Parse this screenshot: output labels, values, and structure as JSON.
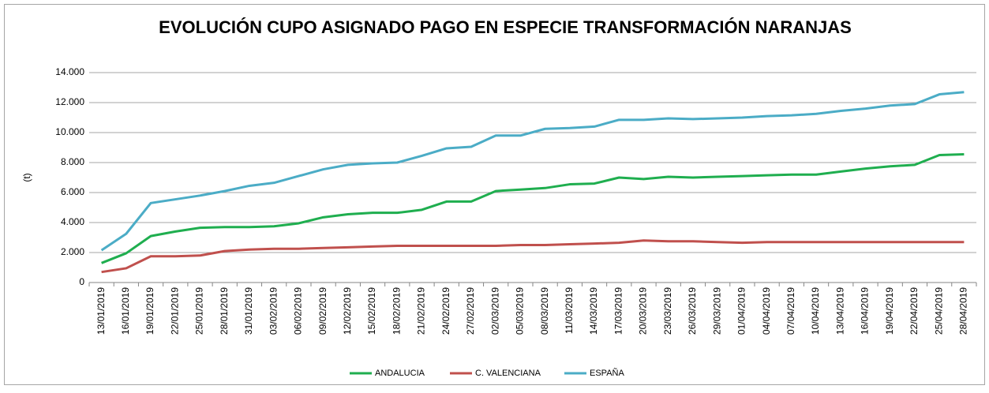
{
  "chart_data": {
    "type": "line",
    "title": "EVOLUCIÓN CUPO ASIGNADO PAGO EN ESPECIE TRANSFORMACIÓN NARANJAS",
    "y_label": "(t)",
    "categories": [
      "13/01/2019",
      "16/01/2019",
      "19/01/2019",
      "22/01/2019",
      "25/01/2019",
      "28/01/2019",
      "31/01/2019",
      "03/02/2019",
      "06/02/2019",
      "09/02/2019",
      "12/02/2019",
      "15/02/2019",
      "18/02/2019",
      "21/02/2019",
      "24/02/2019",
      "27/02/2019",
      "02/03/2019",
      "05/03/2019",
      "08/03/2019",
      "11/03/2019",
      "14/03/2019",
      "17/03/2019",
      "20/03/2019",
      "23/03/2019",
      "26/03/2019",
      "29/03/2019",
      "01/04/2019",
      "04/04/2019",
      "07/04/2019",
      "10/04/2019",
      "13/04/2019",
      "16/04/2019",
      "19/04/2019",
      "22/04/2019",
      "25/04/2019",
      "28/04/2019"
    ],
    "series": [
      {
        "name": "ANDALUCIA",
        "color": "#1fae4f",
        "values": [
          1300,
          1950,
          3100,
          3400,
          3650,
          3700,
          3700,
          3750,
          3950,
          4350,
          4550,
          4650,
          4650,
          4850,
          5400,
          5400,
          6100,
          6200,
          6300,
          6550,
          6600,
          7000,
          6900,
          7050,
          7000,
          7050,
          7100,
          7150,
          7200,
          7200,
          7400,
          7600,
          7750,
          7850,
          8500,
          8550
        ]
      },
      {
        "name": "C. VALENCIANA",
        "color": "#c0504d",
        "values": [
          700,
          950,
          1750,
          1750,
          1800,
          2100,
          2200,
          2250,
          2250,
          2300,
          2350,
          2400,
          2450,
          2450,
          2450,
          2450,
          2450,
          2500,
          2500,
          2550,
          2600,
          2650,
          2800,
          2750,
          2750,
          2700,
          2650,
          2700,
          2700,
          2700,
          2700,
          2700,
          2700,
          2700,
          2700,
          2700
        ]
      },
      {
        "name": "ESPAÑA",
        "color": "#4bacc6",
        "values": [
          2150,
          3250,
          5300,
          5550,
          5800,
          6100,
          6450,
          6650,
          7100,
          7550,
          7850,
          7950,
          8000,
          8450,
          8950,
          9050,
          9800,
          9800,
          10250,
          10300,
          10400,
          10850,
          10850,
          10950,
          10900,
          10950,
          11000,
          11100,
          11150,
          11250,
          11450,
          11600,
          11800,
          11900,
          12550,
          12700
        ]
      }
    ],
    "ylim": [
      0,
      14000
    ],
    "yticks": [
      0,
      {
        "value": 2000,
        "label": "2.000"
      },
      {
        "value": 4000,
        "label": "4.000"
      },
      {
        "value": 6000,
        "label": "6.000"
      },
      {
        "value": 8000,
        "label": "8.000"
      },
      {
        "value": 10000,
        "label": "10.000"
      },
      {
        "value": 12000,
        "label": "12.000"
      },
      {
        "value": 14000,
        "label": "14.000"
      }
    ],
    "grid": true,
    "legend": "bottom"
  }
}
